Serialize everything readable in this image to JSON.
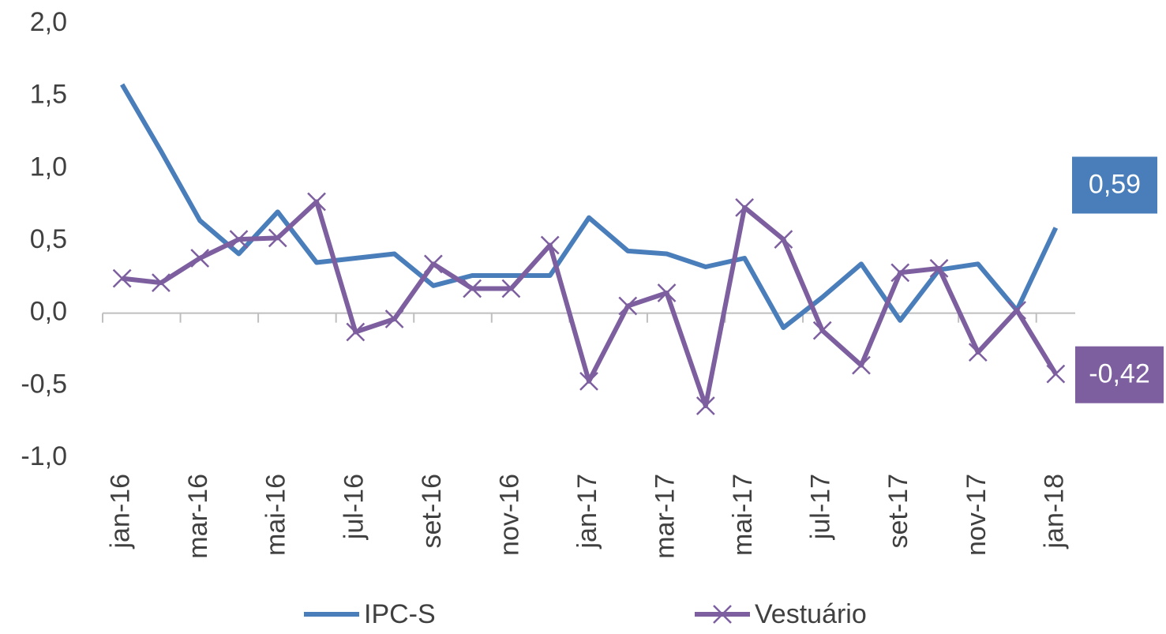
{
  "chart_data": {
    "type": "line",
    "categories": [
      "jan-16",
      null,
      "mar-16",
      null,
      "mai-16",
      null,
      "jul-16",
      null,
      "set-16",
      null,
      "nov-16",
      null,
      "jan-17",
      null,
      "mar-17",
      null,
      "mai-17",
      null,
      "jul-17",
      null,
      "set-17",
      null,
      "nov-17",
      null,
      "jan-18"
    ],
    "series": [
      {
        "name": "IPC-S",
        "color": "#4a7ebb",
        "values": [
          1.58,
          1.12,
          0.64,
          0.41,
          0.7,
          0.35,
          0.38,
          0.41,
          0.19,
          0.26,
          0.26,
          0.26,
          0.66,
          0.43,
          0.41,
          0.32,
          0.38,
          -0.1,
          0.11,
          0.34,
          -0.05,
          0.3,
          0.34,
          0.02,
          0.59
        ],
        "value_labels": [
          null,
          null,
          null,
          null,
          null,
          null,
          null,
          null,
          null,
          null,
          null,
          null,
          null,
          null,
          null,
          null,
          null,
          null,
          null,
          null,
          null,
          null,
          null,
          null,
          "0,59"
        ]
      },
      {
        "name": "Vestuário",
        "color": "#7d5fa0",
        "marker": "x",
        "values": [
          0.24,
          0.21,
          0.38,
          0.51,
          0.52,
          0.77,
          -0.13,
          -0.04,
          0.34,
          0.17,
          0.17,
          0.47,
          -0.47,
          0.05,
          0.14,
          -0.64,
          0.73,
          0.51,
          -0.12,
          -0.36,
          0.28,
          0.31,
          -0.27,
          0.02,
          -0.42
        ],
        "value_labels": [
          null,
          null,
          null,
          null,
          null,
          null,
          null,
          null,
          null,
          null,
          null,
          null,
          null,
          null,
          null,
          null,
          null,
          null,
          null,
          null,
          null,
          null,
          null,
          null,
          "-0,42"
        ]
      }
    ],
    "ylim": [
      -1.0,
      2.0
    ],
    "yticks": [
      {
        "value": -1.0,
        "label": "-1,0"
      },
      {
        "value": -0.5,
        "label": "-0,5"
      },
      {
        "value": 0.0,
        "label": "0,0"
      },
      {
        "value": 0.5,
        "label": "0,5"
      },
      {
        "value": 1.0,
        "label": "1,0"
      },
      {
        "value": 1.5,
        "label": "1,5"
      },
      {
        "value": 2.0,
        "label": "2,0"
      }
    ],
    "grid": false,
    "legend": "bottom"
  }
}
